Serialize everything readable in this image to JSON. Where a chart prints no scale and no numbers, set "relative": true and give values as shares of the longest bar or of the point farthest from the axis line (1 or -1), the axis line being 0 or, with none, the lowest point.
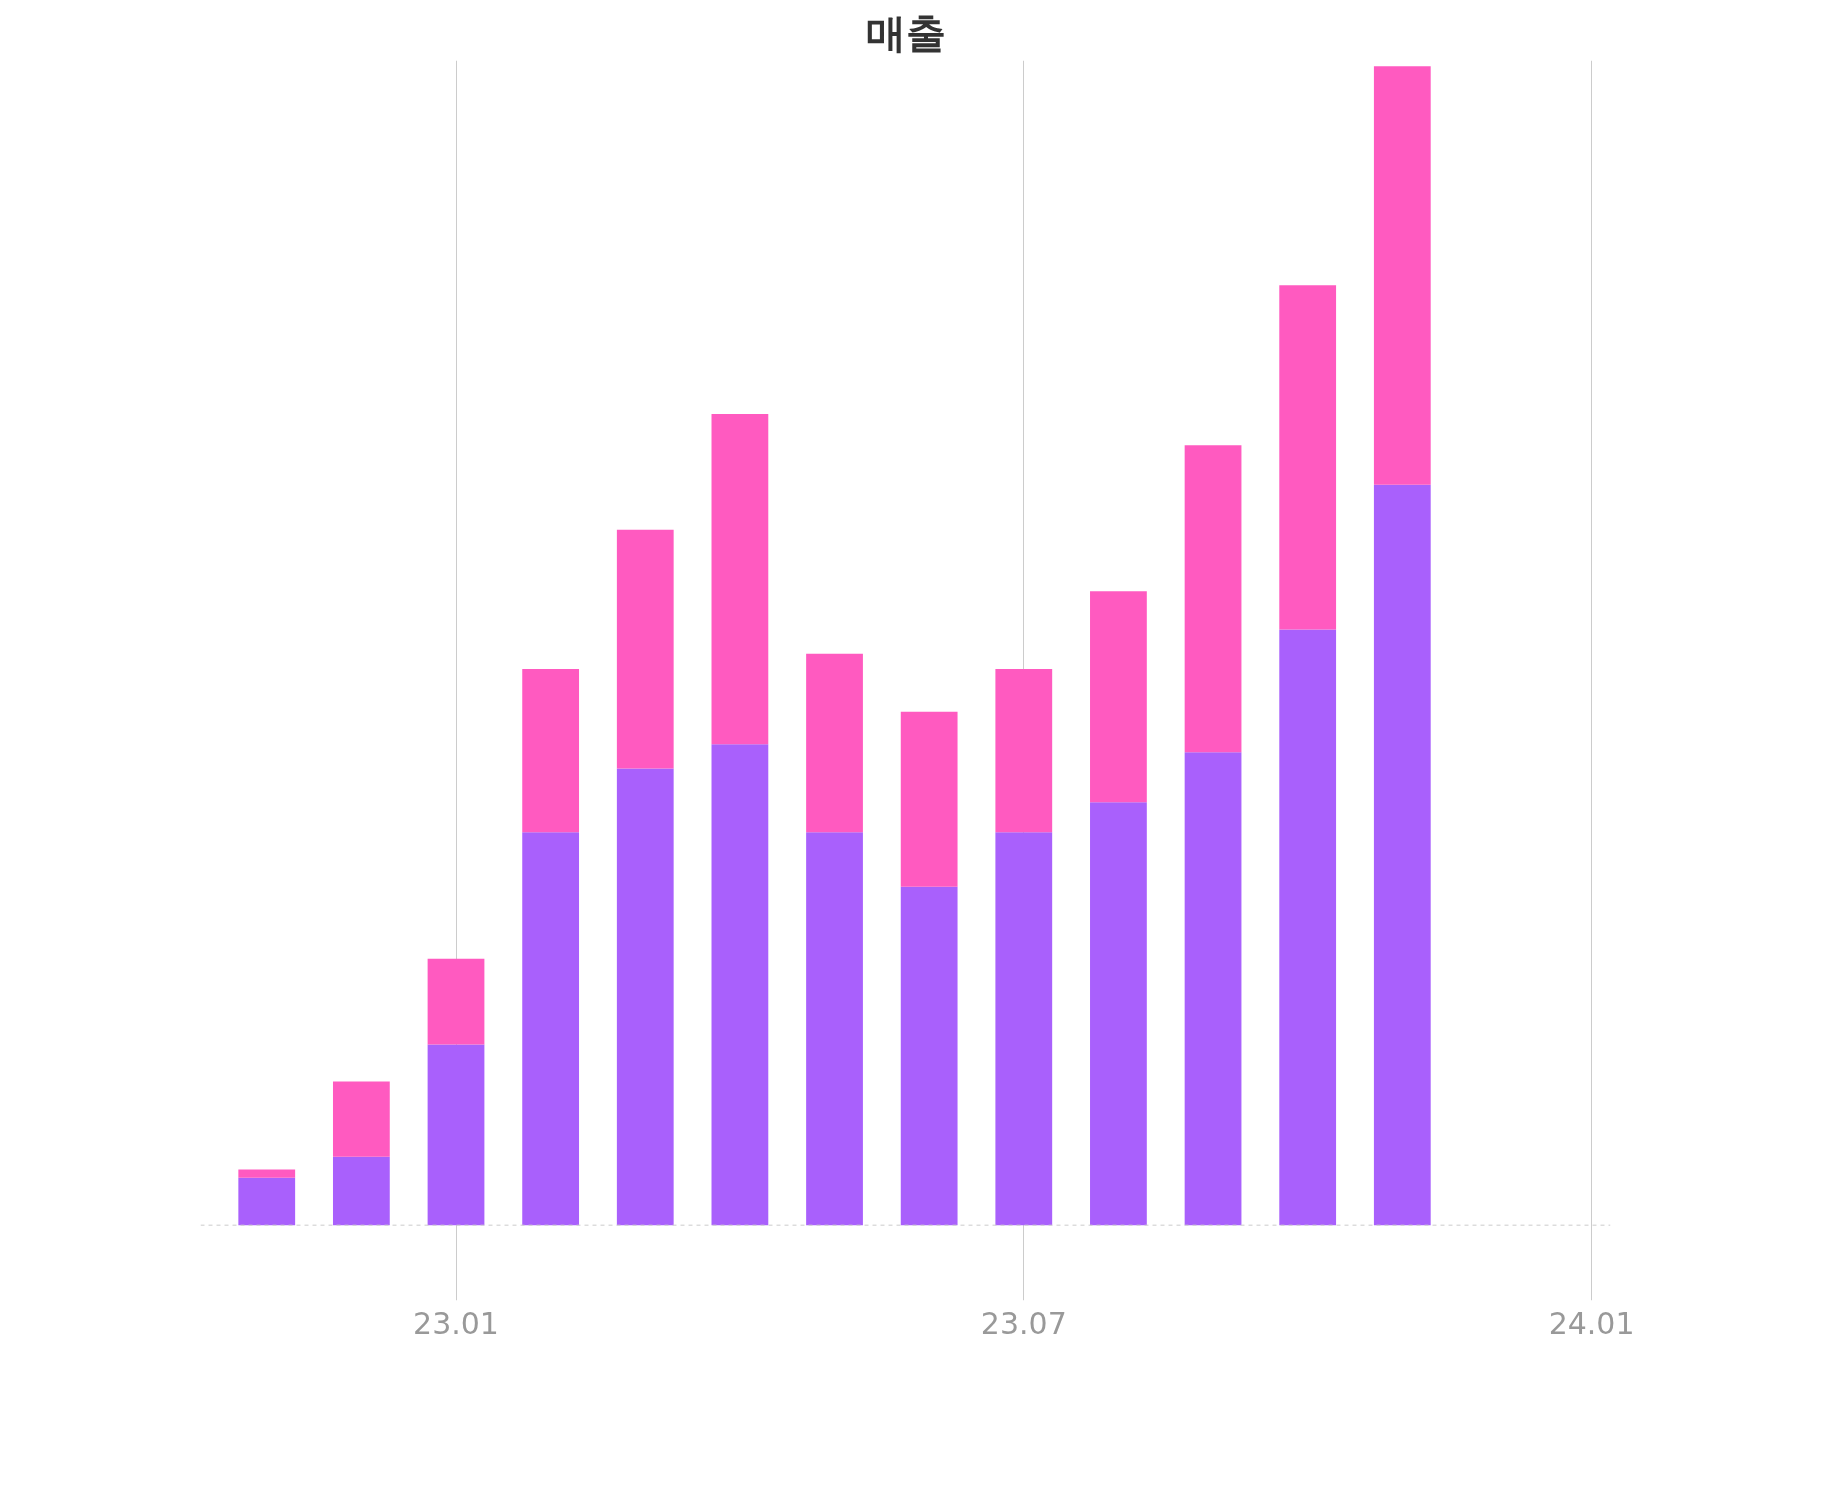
{
  "chart_data": {
    "type": "bar",
    "title": "매출",
    "stacked": true,
    "relative": true,
    "grid": "x",
    "tick_labels": "x",
    "categories": [
      null,
      null,
      "23.01",
      null,
      null,
      null,
      null,
      null,
      "23.07",
      null,
      null,
      null,
      null,
      null,
      "24.01"
    ],
    "series": [
      {
        "color": "#a960fc",
        "values": [
          0.041,
          0.059,
          0.156,
          0.339,
          0.394,
          0.415,
          0.339,
          0.292,
          0.339,
          0.365,
          0.408,
          0.514,
          0.639,
          null,
          null
        ]
      },
      {
        "color": "#ff5ac0",
        "values": [
          0.007,
          0.065,
          0.074,
          0.141,
          0.206,
          0.285,
          0.154,
          0.151,
          0.141,
          0.182,
          0.265,
          0.297,
          0.361,
          null,
          null
        ]
      }
    ]
  }
}
